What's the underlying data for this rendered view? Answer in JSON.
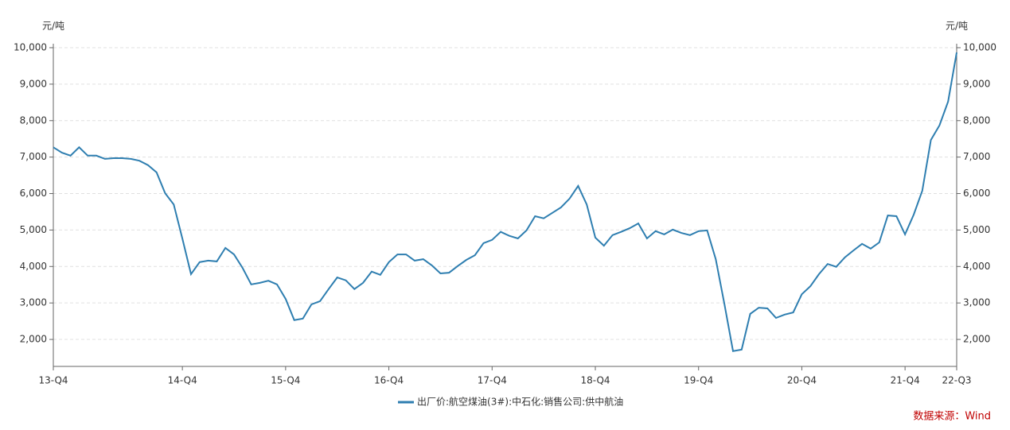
{
  "chart_data": {
    "type": "line",
    "ylabel": "元/吨",
    "y2label": "元/吨",
    "source": "数据来源：Wind",
    "categories": [
      "13-Q4",
      null,
      null,
      null,
      null,
      null,
      null,
      null,
      null,
      null,
      null,
      null,
      null,
      null,
      null,
      "14-Q4",
      null,
      null,
      null,
      null,
      null,
      null,
      null,
      null,
      null,
      null,
      null,
      "15-Q4",
      null,
      null,
      null,
      null,
      null,
      null,
      null,
      null,
      null,
      null,
      null,
      "16-Q4",
      null,
      null,
      null,
      null,
      null,
      null,
      null,
      null,
      null,
      null,
      null,
      "17-Q4",
      null,
      null,
      null,
      null,
      null,
      null,
      null,
      null,
      null,
      null,
      null,
      "18-Q4",
      null,
      null,
      null,
      null,
      null,
      null,
      null,
      null,
      null,
      null,
      null,
      "19-Q4",
      null,
      null,
      null,
      null,
      null,
      null,
      null,
      null,
      null,
      null,
      null,
      "20-Q4",
      null,
      null,
      null,
      null,
      null,
      null,
      null,
      null,
      null,
      null,
      null,
      "21-Q4",
      null,
      null,
      null,
      null,
      null,
      "22-Q3"
    ],
    "series": [
      {
        "name": "出厂价:航空煤油(3#):中石化:销售公司:供中航油",
        "color": "#2e7eb0",
        "values": [
          7270,
          7120,
          7040,
          7270,
          7040,
          7040,
          6950,
          6970,
          6970,
          6950,
          6900,
          6780,
          6580,
          6010,
          5700,
          4770,
          3790,
          4120,
          4160,
          4140,
          4510,
          4330,
          3960,
          3510,
          3550,
          3610,
          3510,
          3110,
          2530,
          2570,
          2960,
          3050,
          3380,
          3700,
          3620,
          3380,
          3550,
          3860,
          3770,
          4120,
          4330,
          4330,
          4160,
          4200,
          4030,
          3810,
          3830,
          4010,
          4180,
          4310,
          4640,
          4730,
          4950,
          4840,
          4770,
          4990,
          5380,
          5320,
          5470,
          5620,
          5860,
          6210,
          5700,
          4790,
          4570,
          4860,
          4950,
          5050,
          5180,
          4770,
          4970,
          4880,
          5010,
          4920,
          4860,
          4970,
          4990,
          4200,
          2980,
          1680,
          1720,
          2700,
          2870,
          2850,
          2590,
          2680,
          2740,
          3240,
          3460,
          3790,
          4070,
          3990,
          4250,
          4440,
          4620,
          4490,
          4660,
          5400,
          5380,
          4880,
          5420,
          6080,
          7470,
          7870,
          8520,
          9870
        ]
      }
    ],
    "ylim": [
      1260,
      10000
    ],
    "yticks": [
      {
        "value": 2000,
        "label": "2,000"
      },
      {
        "value": 3000,
        "label": "3,000"
      },
      {
        "value": 4000,
        "label": "4,000"
      },
      {
        "value": 5000,
        "label": "5,000"
      },
      {
        "value": 6000,
        "label": "6,000"
      },
      {
        "value": 7000,
        "label": "7,000"
      },
      {
        "value": 8000,
        "label": "8,000"
      },
      {
        "value": 9000,
        "label": "9,000"
      },
      {
        "value": 10000,
        "label": "10,000"
      }
    ],
    "y2lim": [
      1260,
      10000
    ],
    "y2ticks": [
      {
        "value": 2000,
        "label": "2,000"
      },
      {
        "value": 3000,
        "label": "3,000"
      },
      {
        "value": 4000,
        "label": "4,000"
      },
      {
        "value": 5000,
        "label": "5,000"
      },
      {
        "value": 6000,
        "label": "6,000"
      },
      {
        "value": 7000,
        "label": "7,000"
      },
      {
        "value": 8000,
        "label": "8,000"
      },
      {
        "value": 9000,
        "label": "9,000"
      },
      {
        "value": 10000,
        "label": "10,000"
      }
    ],
    "grid": true
  }
}
